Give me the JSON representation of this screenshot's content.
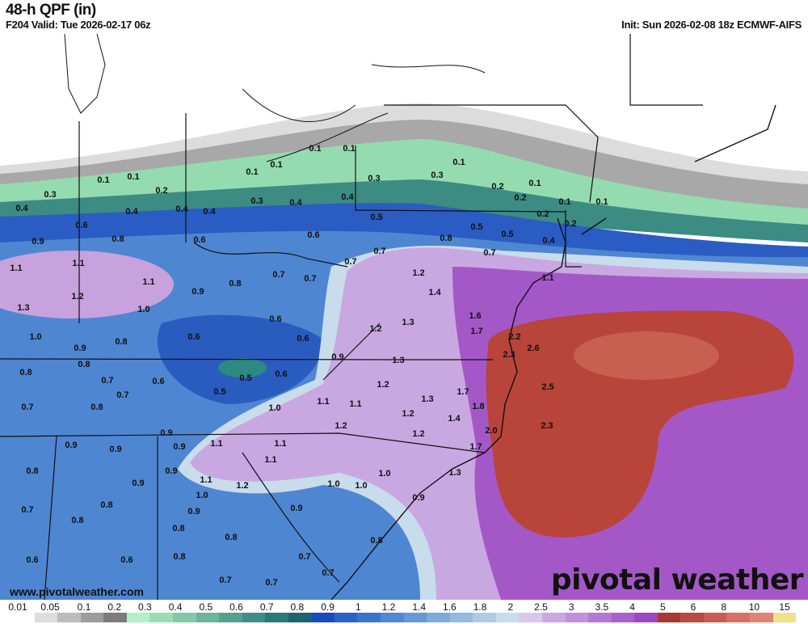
{
  "header": {
    "title": "48-h QPF (in)",
    "valid": "F204 Valid: Tue 2026-02-17 06z",
    "init": "Init: Sun 2026-02-08 18z ECMWF-AIFS"
  },
  "footer": {
    "website": "www.pivotalweather.com",
    "logo": "pivotal weather"
  },
  "colorbar": {
    "labels": [
      "0.01",
      "0.05",
      "0.1",
      "0.2",
      "0.3",
      "0.4",
      "0.5",
      "0.6",
      "0.7",
      "0.8",
      "0.9",
      "1",
      "1.2",
      "1.4",
      "1.6",
      "1.8",
      "2",
      "2.5",
      "3",
      "3.5",
      "4",
      "5",
      "6",
      "8",
      "10",
      "15"
    ],
    "colors": [
      "#ffffff",
      "#dcdcdc",
      "#bcbcbc",
      "#9c9c9c",
      "#7c7c7c",
      "#b4f0c4",
      "#9adcb4",
      "#84c8a8",
      "#6cb49c",
      "#56a090",
      "#408c88",
      "#2c7878",
      "#1c6470",
      "#1a4cc0",
      "#2a62c8",
      "#3c74cc",
      "#5088d4",
      "#6698d8",
      "#7eaadc",
      "#96badf",
      "#b0cae4",
      "#c8dcec",
      "#d8c8ec",
      "#cba8e4",
      "#c090dc",
      "#b478d4",
      "#a860cc",
      "#9c48c4",
      "#a83830",
      "#b84a40",
      "#c85c50",
      "#d87064",
      "#e08474",
      "#f0e08c"
    ]
  },
  "map": {
    "contour_labels": [
      "0.1",
      "0.1",
      "0.1",
      "0.1",
      "0.1",
      "0.1",
      "0.3",
      "0.2",
      "0.4",
      "0.4",
      "0.4",
      "0.4",
      "0.3",
      "0.4",
      "0.4",
      "0.3",
      "0.3",
      "0.1",
      "0.2",
      "0.1",
      "0.2",
      "0.1",
      "0.1",
      "0.5",
      "0.2",
      "0.2",
      "0.6",
      "0.9",
      "0.8",
      "0.6",
      "0.6",
      "0.7",
      "0.7",
      "0.8",
      "0.5",
      "0.5",
      "0.7",
      "0.4",
      "1.1",
      "1.1",
      "0.7",
      "0.7",
      "0.8",
      "1.2",
      "1.1",
      "1.2",
      "1.1",
      "0.9",
      "1.4",
      "1.3",
      "1.0",
      "0.6",
      "1.6",
      "1.0",
      "0.8",
      "0.6",
      "0.6",
      "1.2",
      "1.3",
      "1.7",
      "2.2",
      "0.9",
      "0.9",
      "1.3",
      "2.3",
      "2.6",
      "0.8",
      "0.8",
      "0.7",
      "0.6",
      "0.5",
      "0.6",
      "1.2",
      "1.7",
      "2.5",
      "0.7",
      "0.8",
      "0.7",
      "0.5",
      "1.0",
      "1.1",
      "1.1",
      "1.3",
      "1.2",
      "1.4",
      "1.8",
      "1.2",
      "1.2",
      "2.0",
      "2.3",
      "0.9",
      "0.9",
      "0.9",
      "0.9",
      "1.1",
      "1.1",
      "1.1",
      "1.7",
      "0.8",
      "0.9",
      "1.1",
      "1.2",
      "0.9",
      "1.0",
      "1.0",
      "1.0",
      "1.0",
      "1.3",
      "0.7",
      "0.8",
      "0.8",
      "0.9",
      "0.9",
      "0.9",
      "0.8",
      "0.8",
      "0.8",
      "0.6",
      "0.6",
      "0.8",
      "0.7",
      "0.7",
      "0.7",
      "0.7"
    ]
  }
}
